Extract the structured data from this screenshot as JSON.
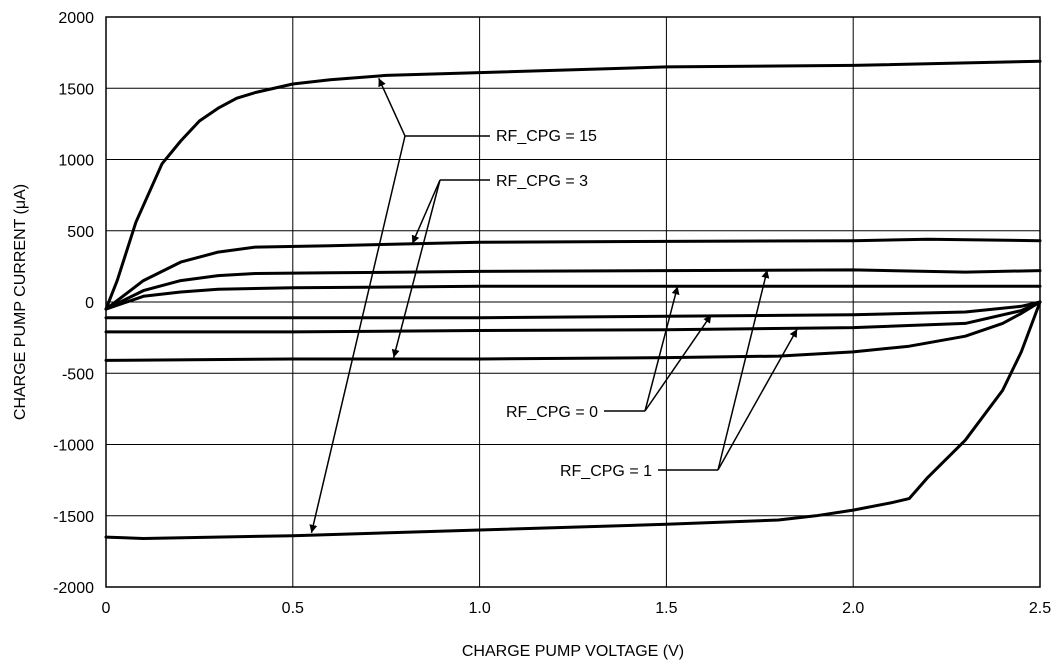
{
  "chart_data": {
    "type": "line",
    "xlabel": "CHARGE PUMP VOLTAGE (V)",
    "ylabel": "CHARGE PUMP CURRENT (μA)",
    "xlim": [
      0,
      2.5
    ],
    "ylim": [
      -2000,
      2000
    ],
    "x_ticks": [
      0,
      0.5,
      1.0,
      1.5,
      2.0,
      2.5
    ],
    "x_tick_labels": [
      "0",
      "0.5",
      "1.0",
      "1.5",
      "2.0",
      "2.5"
    ],
    "y_ticks": [
      -2000,
      -1500,
      -1000,
      -500,
      0,
      500,
      1000,
      1500,
      2000
    ],
    "y_tick_labels": [
      "-2000",
      "-1500",
      "-1000",
      "-500",
      "0",
      "500",
      "1000",
      "1500",
      "2000"
    ],
    "grid": true,
    "series": [
      {
        "x": [
          0,
          0.03,
          0.08,
          0.15,
          0.2,
          0.25,
          0.3,
          0.35,
          0.4,
          0.5,
          0.6,
          0.75,
          1.0,
          1.5,
          2.0,
          2.5
        ],
        "y": [
          -50,
          150,
          560,
          970,
          1130,
          1270,
          1360,
          1430,
          1470,
          1530,
          1560,
          1590,
          1610,
          1650,
          1660,
          1690
        ]
      },
      {
        "x": [
          0,
          0.1,
          0.2,
          0.3,
          0.4,
          0.6,
          1.0,
          1.5,
          2.0,
          2.2,
          2.5
        ],
        "y": [
          -50,
          150,
          280,
          350,
          385,
          395,
          420,
          425,
          430,
          440,
          430
        ]
      },
      {
        "x": [
          0,
          0.1,
          0.2,
          0.3,
          0.4,
          0.6,
          1.0,
          1.5,
          2.0,
          2.3,
          2.5
        ],
        "y": [
          -50,
          80,
          150,
          185,
          200,
          205,
          215,
          220,
          225,
          210,
          220
        ]
      },
      {
        "x": [
          0,
          0.1,
          0.2,
          0.3,
          0.5,
          1.0,
          1.5,
          2.0,
          2.5
        ],
        "y": [
          -50,
          40,
          70,
          90,
          100,
          110,
          110,
          110,
          110
        ]
      },
      {
        "x": [
          0,
          0.5,
          1.0,
          1.5,
          2.0,
          2.3,
          2.45,
          2.5
        ],
        "y": [
          -110,
          -110,
          -110,
          -100,
          -90,
          -70,
          -30,
          0
        ]
      },
      {
        "x": [
          0,
          0.5,
          1.0,
          1.5,
          2.0,
          2.3,
          2.45,
          2.5
        ],
        "y": [
          -210,
          -210,
          -200,
          -195,
          -180,
          -150,
          -60,
          0
        ]
      },
      {
        "x": [
          0,
          0.5,
          1.0,
          1.5,
          1.8,
          2.0,
          2.15,
          2.3,
          2.4,
          2.45,
          2.5
        ],
        "y": [
          -410,
          -400,
          -400,
          -390,
          -380,
          -350,
          -310,
          -240,
          -150,
          -80,
          0
        ]
      },
      {
        "x": [
          0,
          0.1,
          0.5,
          1.0,
          1.5,
          1.8,
          1.9,
          2.0,
          2.1,
          2.15,
          2.2,
          2.3,
          2.4,
          2.45,
          2.5
        ],
        "y": [
          -1650,
          -1660,
          -1640,
          -1600,
          -1560,
          -1530,
          -1500,
          -1460,
          -1410,
          -1380,
          -1230,
          -970,
          -620,
          -350,
          0
        ]
      }
    ],
    "annotations": [
      {
        "text": "RF_CPG = 15",
        "arrows_to": [
          {
            "x": 0.73,
            "y": 1570
          },
          {
            "x": 0.55,
            "y": -1620
          }
        ]
      },
      {
        "text": "RF_CPG = 3",
        "arrows_to": [
          {
            "x": 0.82,
            "y": 410
          },
          {
            "x": 0.77,
            "y": -390
          }
        ]
      },
      {
        "text": "RF_CPG = 0",
        "arrows_to": [
          {
            "x": 1.53,
            "y": 110
          },
          {
            "x": 1.62,
            "y": -90
          }
        ]
      },
      {
        "text": "RF_CPG = 1",
        "arrows_to": [
          {
            "x": 1.77,
            "y": 225
          },
          {
            "x": 1.85,
            "y": -190
          }
        ]
      }
    ]
  }
}
